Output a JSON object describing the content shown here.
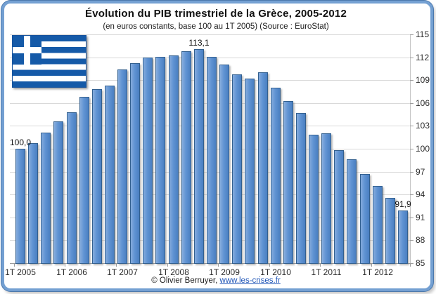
{
  "header": {
    "title": "Évolution du PIB trimestriel de la Grèce, 2005-2012",
    "subtitle": "(en euros constants, base 100 au 1T 2005) (Source : EuroStat)"
  },
  "footer": {
    "copyright_text": "© Olivier Berruyer, ",
    "link_text": "www.les-crises.fr"
  },
  "icons": {
    "flag": "greece-flag"
  },
  "colors": {
    "frame_border": "#74a0d2",
    "bar_fill": "#5d91d2",
    "bar_border": "#33608f",
    "gridline": "#d9d9d9",
    "flag_blue": "#155aa8",
    "link_blue": "#2257b8"
  },
  "chart_data": {
    "type": "bar",
    "title": "Évolution du PIB trimestriel de la Grèce, 2005-2012",
    "subtitle": "(en euros constants, base 100 au 1T 2005) (Source : EuroStat)",
    "xlabel": "",
    "ylabel": "",
    "ylim": [
      85,
      115
    ],
    "grid": "horizontal",
    "legend": "none",
    "y_axis_side": "right",
    "y_ticks": [
      85,
      88,
      91,
      94,
      97,
      100,
      103,
      106,
      109,
      112,
      115
    ],
    "x_tick_labels": [
      "1T 2005",
      "1T 2006",
      "1T 2007",
      "1T 2008",
      "1T 2009",
      "1T 2010",
      "1T 2011",
      "1T 2012"
    ],
    "categories": [
      "1T 2005",
      "2T 2005",
      "3T 2005",
      "4T 2005",
      "1T 2006",
      "2T 2006",
      "3T 2006",
      "4T 2006",
      "1T 2007",
      "2T 2007",
      "3T 2007",
      "4T 2007",
      "1T 2008",
      "2T 2008",
      "3T 2008",
      "4T 2008",
      "1T 2009",
      "2T 2009",
      "3T 2009",
      "4T 2009",
      "1T 2010",
      "2T 2010",
      "3T 2010",
      "4T 2010",
      "1T 2011",
      "2T 2011",
      "3T 2011",
      "4T 2011",
      "1T 2012",
      "2T 2012",
      "3T 2012"
    ],
    "values": [
      100.0,
      100.7,
      102.1,
      103.6,
      104.8,
      106.8,
      107.8,
      108.3,
      110.4,
      111.2,
      112.0,
      112.1,
      112.2,
      112.8,
      113.1,
      112.1,
      111.0,
      109.8,
      109.2,
      110.0,
      108.0,
      106.3,
      104.7,
      101.8,
      102.0,
      99.8,
      98.6,
      96.7,
      95.1,
      93.6,
      91.9
    ],
    "data_labels": {
      "0": "100,0",
      "14": "113,1",
      "30": "91,9"
    }
  }
}
